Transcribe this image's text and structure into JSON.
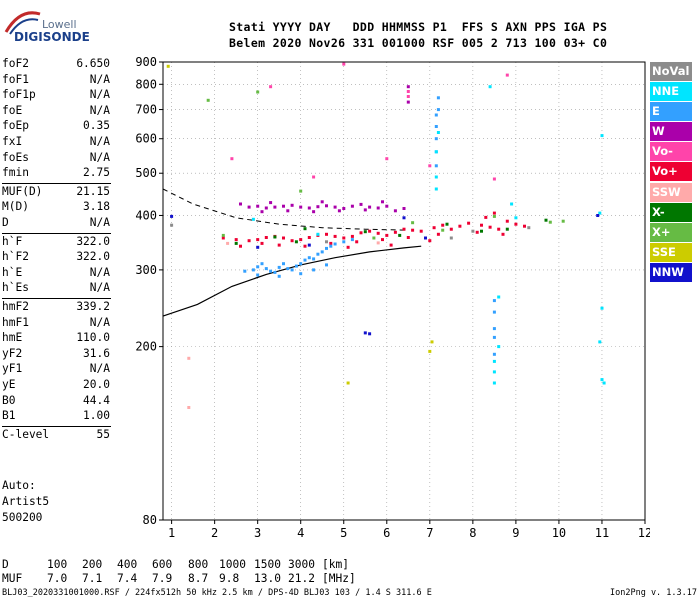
{
  "logo": {
    "line1": "Lowell",
    "line2": "DIGISONDE"
  },
  "header": {
    "line1": "Stati YYYY DAY   DDD HHMMSS P1  FFS S AXN PPS IGA PS",
    "line2": "Belem 2020 Nov26 331 001000 RSF 005 2 713 100 03+ C0"
  },
  "params_groups": [
    [
      [
        "foF2",
        "6.650"
      ],
      [
        "foF1",
        "N/A"
      ],
      [
        "foF1p",
        "N/A"
      ],
      [
        "foE",
        "N/A"
      ],
      [
        "foEp",
        "0.35"
      ],
      [
        "fxI",
        "N/A"
      ],
      [
        "foEs",
        "N/A"
      ],
      [
        "fmin",
        "2.75"
      ]
    ],
    [
      [
        "MUF(D)",
        "21.15"
      ],
      [
        "M(D)",
        "3.18"
      ],
      [
        "D",
        "N/A"
      ]
    ],
    [
      [
        "h`F",
        "322.0"
      ],
      [
        "h`F2",
        "322.0"
      ],
      [
        "h`E",
        "N/A"
      ],
      [
        "h`Es",
        "N/A"
      ]
    ],
    [
      [
        "hmF2",
        "339.2"
      ],
      [
        "hmF1",
        "N/A"
      ],
      [
        "hmE",
        "110.0"
      ],
      [
        "yF2",
        "31.6"
      ],
      [
        "yF1",
        "N/A"
      ],
      [
        "yE",
        "20.0"
      ],
      [
        "B0",
        "44.4"
      ],
      [
        "B1",
        "1.00"
      ]
    ],
    [
      [
        "C-level",
        "55"
      ]
    ]
  ],
  "auto": {
    "line1": "Auto:",
    "line2": "Artist5",
    "line3": "500200"
  },
  "legend": [
    {
      "label": "NoVal",
      "color": "#8c8c8c"
    },
    {
      "label": "NNE",
      "color": "#00e5ff"
    },
    {
      "label": "E",
      "color": "#33a0ff"
    },
    {
      "label": "W",
      "color": "#aa00aa"
    },
    {
      "label": "Vo-",
      "color": "#ff44aa"
    },
    {
      "label": "Vo+",
      "color": "#ee0033"
    },
    {
      "label": "SSW",
      "color": "#ffaaaa"
    },
    {
      "label": "X-",
      "color": "#007700"
    },
    {
      "label": "X+",
      "color": "#66bb44"
    },
    {
      "label": "SSE",
      "color": "#cccc00"
    },
    {
      "label": "NNW",
      "color": "#1111cc"
    }
  ],
  "bottom": {
    "row1_label": "D",
    "row1_values": [
      "100",
      "200",
      "400",
      "600",
      "800",
      "1000",
      "1500",
      "3000"
    ],
    "row1_unit": "[km]",
    "row2_label": "MUF",
    "row2_values": [
      "7.0",
      "7.1",
      "7.4",
      "7.9",
      "8.7",
      "9.8",
      "13.0",
      "21.2"
    ],
    "row2_unit": "[MHz]"
  },
  "footer": {
    "left": "BLJ03_2020331001000.RSF / 224fx512h 50 kHz 2.5 km / DPS-4D BLJ03 103 / 1.4 S 311.6 E",
    "right": "Ion2Png v. 1.3.17"
  },
  "chart_data": {
    "type": "scatter",
    "title": "",
    "xlabel": "",
    "ylabel": "",
    "xlim": [
      0.8,
      12
    ],
    "ylim": [
      80,
      900
    ],
    "x_ticks": [
      1,
      2,
      3,
      4,
      5,
      6,
      7,
      8,
      9,
      10,
      11,
      12
    ],
    "y_ticks": [
      80,
      200,
      300,
      400,
      500,
      600,
      700,
      800,
      900
    ],
    "y_scale": "log",
    "grid": true,
    "series": [
      {
        "name": "Vo+",
        "color": "#ee0033",
        "points": [
          [
            2.2,
            355
          ],
          [
            2.5,
            352
          ],
          [
            2.8,
            350
          ],
          [
            3.0,
            352
          ],
          [
            3.2,
            356
          ],
          [
            3.4,
            358
          ],
          [
            3.6,
            355
          ],
          [
            3.8,
            350
          ],
          [
            4.0,
            352
          ],
          [
            4.2,
            356
          ],
          [
            4.4,
            360
          ],
          [
            4.6,
            362
          ],
          [
            4.8,
            358
          ],
          [
            5.0,
            355
          ],
          [
            5.2,
            358
          ],
          [
            5.4,
            365
          ],
          [
            5.6,
            368
          ],
          [
            5.8,
            364
          ],
          [
            6.0,
            360
          ],
          [
            6.2,
            366
          ],
          [
            6.4,
            372
          ],
          [
            6.6,
            370
          ],
          [
            6.8,
            368
          ],
          [
            7.1,
            375
          ],
          [
            7.3,
            380
          ],
          [
            7.5,
            372
          ],
          [
            7.7,
            378
          ],
          [
            7.9,
            384
          ],
          [
            8.2,
            380
          ],
          [
            8.4,
            376
          ],
          [
            8.6,
            372
          ],
          [
            8.8,
            388
          ],
          [
            9.0,
            382
          ],
          [
            9.2,
            378
          ],
          [
            3.1,
            345
          ],
          [
            3.5,
            342
          ],
          [
            4.1,
            340
          ],
          [
            4.7,
            345
          ],
          [
            5.3,
            348
          ],
          [
            5.9,
            352
          ],
          [
            6.5,
            356
          ],
          [
            7.2,
            362
          ],
          [
            8.1,
            366
          ],
          [
            8.7,
            362
          ],
          [
            2.6,
            340
          ],
          [
            5.1,
            338
          ],
          [
            6.1,
            342
          ],
          [
            7.0,
            350
          ],
          [
            8.3,
            396
          ],
          [
            8.5,
            405
          ]
        ]
      },
      {
        "name": "W",
        "color": "#aa00aa",
        "points": [
          [
            2.8,
            418
          ],
          [
            3.0,
            420
          ],
          [
            3.2,
            416
          ],
          [
            3.4,
            418
          ],
          [
            3.6,
            420
          ],
          [
            3.8,
            422
          ],
          [
            4.0,
            418
          ],
          [
            4.2,
            416
          ],
          [
            4.4,
            419
          ],
          [
            4.6,
            421
          ],
          [
            4.8,
            418
          ],
          [
            5.0,
            415
          ],
          [
            5.2,
            420
          ],
          [
            5.4,
            424
          ],
          [
            5.6,
            418
          ],
          [
            5.8,
            416
          ],
          [
            6.0,
            420
          ],
          [
            2.6,
            425
          ],
          [
            3.1,
            408
          ],
          [
            3.7,
            410
          ],
          [
            4.3,
            408
          ],
          [
            4.9,
            410
          ],
          [
            5.5,
            412
          ],
          [
            6.2,
            410
          ],
          [
            6.4,
            415
          ],
          [
            3.3,
            428
          ],
          [
            4.5,
            430
          ],
          [
            5.9,
            430
          ],
          [
            6.5,
            728
          ],
          [
            6.5,
            790
          ]
        ]
      },
      {
        "name": "E",
        "color": "#33a0ff",
        "points": [
          [
            2.9,
            300
          ],
          [
            3.0,
            305
          ],
          [
            3.1,
            310
          ],
          [
            3.2,
            302
          ],
          [
            3.3,
            298
          ],
          [
            3.4,
            296
          ],
          [
            3.5,
            304
          ],
          [
            3.6,
            310
          ],
          [
            3.7,
            302
          ],
          [
            3.8,
            300
          ],
          [
            3.9,
            306
          ],
          [
            4.0,
            310
          ],
          [
            4.1,
            316
          ],
          [
            4.2,
            320
          ],
          [
            4.3,
            318
          ],
          [
            4.4,
            326
          ],
          [
            4.5,
            330
          ],
          [
            4.6,
            336
          ],
          [
            4.7,
            340
          ],
          [
            4.8,
            344
          ],
          [
            5.0,
            348
          ],
          [
            5.2,
            352
          ],
          [
            2.7,
            298
          ],
          [
            3.0,
            292
          ],
          [
            3.5,
            290
          ],
          [
            4.0,
            294
          ],
          [
            4.3,
            300
          ],
          [
            4.6,
            308
          ],
          [
            7.15,
            520
          ],
          [
            7.15,
            560
          ],
          [
            7.15,
            600
          ],
          [
            7.15,
            640
          ],
          [
            7.15,
            680
          ],
          [
            7.2,
            700
          ],
          [
            7.2,
            745
          ],
          [
            8.5,
            255
          ],
          [
            8.5,
            240
          ],
          [
            8.5,
            220
          ],
          [
            8.5,
            210
          ],
          [
            8.5,
            192
          ]
        ]
      },
      {
        "name": "NNE",
        "color": "#00e5ff",
        "points": [
          [
            7.15,
            460
          ],
          [
            7.15,
            490
          ],
          [
            7.15,
            560
          ],
          [
            7.2,
            620
          ],
          [
            8.4,
            790
          ],
          [
            8.5,
            185
          ],
          [
            8.5,
            175
          ],
          [
            8.5,
            165
          ],
          [
            8.6,
            260
          ],
          [
            8.6,
            200
          ],
          [
            10.95,
            205
          ],
          [
            11.0,
            245
          ],
          [
            11.0,
            168
          ],
          [
            11.05,
            165
          ],
          [
            10.95,
            405
          ],
          [
            11.0,
            610
          ],
          [
            9.0,
            395
          ],
          [
            4.4,
            362
          ],
          [
            2.9,
            392
          ],
          [
            8.9,
            425
          ]
        ]
      },
      {
        "name": "Vo-",
        "color": "#ff44aa",
        "points": [
          [
            6.5,
            750
          ],
          [
            6.5,
            770
          ],
          [
            7.0,
            520
          ],
          [
            8.5,
            485
          ],
          [
            3.3,
            790
          ],
          [
            6.0,
            540
          ],
          [
            4.3,
            490
          ],
          [
            2.4,
            540
          ],
          [
            8.8,
            840
          ],
          [
            5.0,
            890
          ]
        ]
      },
      {
        "name": "X-",
        "color": "#007700",
        "points": [
          [
            3.4,
            357
          ],
          [
            4.1,
            373
          ],
          [
            5.5,
            367
          ],
          [
            7.4,
            382
          ],
          [
            8.2,
            368
          ],
          [
            9.7,
            390
          ],
          [
            2.5,
            345
          ],
          [
            3.9,
            348
          ],
          [
            6.3,
            360
          ],
          [
            8.8,
            372
          ]
        ]
      },
      {
        "name": "X+",
        "color": "#66bb44",
        "points": [
          [
            1.85,
            735
          ],
          [
            3.0,
            768
          ],
          [
            4.0,
            455
          ],
          [
            6.6,
            385
          ],
          [
            7.3,
            370
          ],
          [
            9.8,
            386
          ],
          [
            10.1,
            388
          ],
          [
            8.5,
            398
          ],
          [
            2.2,
            360
          ],
          [
            5.7,
            355
          ]
        ]
      },
      {
        "name": "SSE",
        "color": "#cccc00",
        "points": [
          [
            0.92,
            880
          ],
          [
            7.05,
            205
          ],
          [
            7.0,
            195
          ],
          [
            5.1,
            165
          ]
        ]
      },
      {
        "name": "SSW",
        "color": "#ffaaaa",
        "points": [
          [
            1.4,
            188
          ],
          [
            1.4,
            145
          ],
          [
            2.3,
            345
          ],
          [
            5.8,
            346
          ]
        ]
      },
      {
        "name": "NNW",
        "color": "#1111cc",
        "points": [
          [
            5.5,
            215
          ],
          [
            5.6,
            214
          ],
          [
            6.9,
            355
          ],
          [
            10.9,
            400
          ],
          [
            3.0,
            338
          ],
          [
            4.2,
            342
          ],
          [
            1.0,
            398
          ],
          [
            6.4,
            395
          ]
        ]
      },
      {
        "name": "NoVal",
        "color": "#8c8c8c",
        "points": [
          [
            1.0,
            380
          ],
          [
            7.5,
            355
          ],
          [
            8.0,
            368
          ],
          [
            9.3,
            375
          ],
          [
            4.6,
            348
          ]
        ]
      }
    ],
    "profile_curves": {
      "upper_dashed": {
        "x": [
          0.8,
          1.5,
          2.5,
          3.5,
          4.5,
          5.5,
          6.5
        ],
        "y": [
          460,
          425,
          395,
          382,
          375,
          372,
          370
        ]
      },
      "lower_solid": {
        "x": [
          0.8,
          1.6,
          2.4,
          3.2,
          4.0,
          4.8,
          5.6,
          6.4,
          6.8
        ],
        "y": [
          235,
          250,
          275,
          293,
          308,
          320,
          330,
          337,
          340
        ]
      }
    }
  }
}
